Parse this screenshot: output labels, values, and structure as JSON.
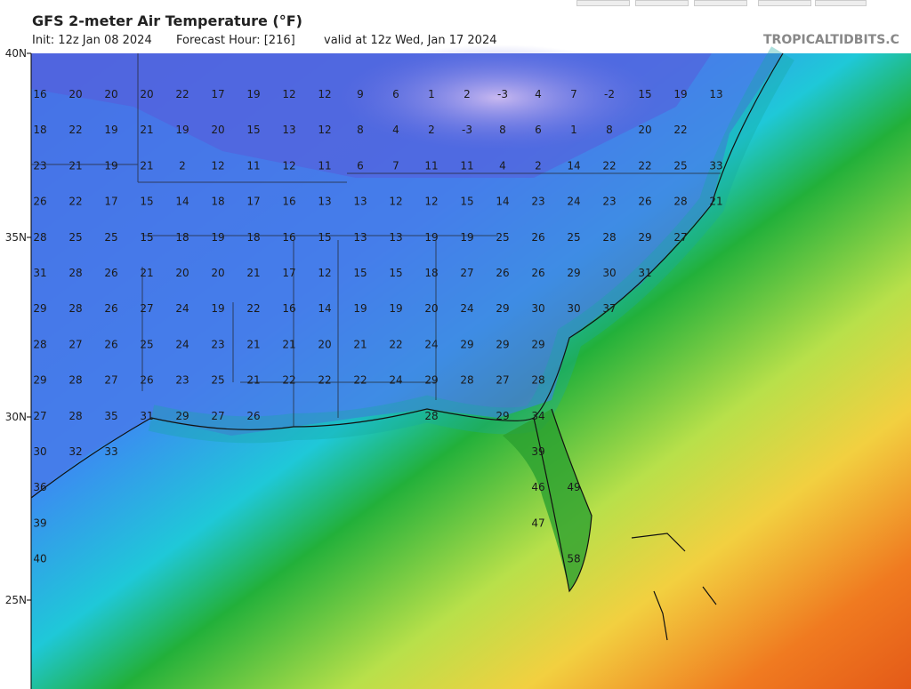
{
  "header": {
    "title": "GFS 2-meter Air Temperature (°F)",
    "init": "Init: 12z Jan 08 2024",
    "forecast": "Forecast Hour: [216]",
    "valid": "valid at 12z Wed, Jan 17 2024"
  },
  "watermark": "TROPICALTIDBITS.C",
  "lat_labels": [
    "40N",
    "35N",
    "30N",
    "25N"
  ],
  "grid": {
    "rows": [
      [
        "16",
        "20",
        "20",
        "20",
        "22",
        "17",
        "19",
        "12",
        "12",
        "9",
        "6",
        "1",
        "2",
        "-3",
        "4",
        "7",
        "-2",
        "15",
        "19",
        "13"
      ],
      [
        "18",
        "22",
        "19",
        "21",
        "19",
        "20",
        "15",
        "13",
        "12",
        "8",
        "4",
        "2",
        "-3",
        "8",
        "6",
        "1",
        "8",
        "20",
        "22",
        null
      ],
      [
        "23",
        "21",
        "19",
        "21",
        "2",
        "12",
        "11",
        "12",
        "11",
        "6",
        "7",
        "11",
        "11",
        "4",
        "2",
        "14",
        "22",
        "22",
        "25",
        "33"
      ],
      [
        "26",
        "22",
        "17",
        "15",
        "14",
        "18",
        "17",
        "16",
        "13",
        "13",
        "12",
        "12",
        "15",
        "14",
        "23",
        "24",
        "23",
        "26",
        "28",
        "21"
      ],
      [
        "28",
        "25",
        "25",
        "15",
        "18",
        "19",
        "18",
        "16",
        "15",
        "13",
        "13",
        "19",
        "19",
        "25",
        "26",
        "25",
        "28",
        "29",
        "27",
        null
      ],
      [
        "31",
        "28",
        "26",
        "21",
        "20",
        "20",
        "21",
        "17",
        "12",
        "15",
        "15",
        "18",
        "27",
        "26",
        "26",
        "29",
        "30",
        "31",
        null,
        null
      ],
      [
        "29",
        "28",
        "26",
        "27",
        "24",
        "19",
        "22",
        "16",
        "14",
        "19",
        "19",
        "20",
        "24",
        "29",
        "30",
        "30",
        "37",
        null,
        null,
        null
      ],
      [
        "28",
        "27",
        "26",
        "25",
        "24",
        "23",
        "21",
        "21",
        "20",
        "21",
        "22",
        "24",
        "29",
        "29",
        "29",
        null,
        null,
        null,
        null,
        null
      ],
      [
        "29",
        "28",
        "27",
        "26",
        "23",
        "25",
        "21",
        "22",
        "22",
        "22",
        "24",
        "29",
        "28",
        "27",
        "28",
        null,
        null,
        null,
        null,
        null
      ],
      [
        "27",
        "28",
        "35",
        "31",
        "29",
        "27",
        "26",
        null,
        null,
        null,
        null,
        "28",
        null,
        "29",
        "34",
        null,
        null,
        null,
        null,
        null
      ],
      [
        "30",
        "32",
        "33",
        null,
        null,
        null,
        null,
        null,
        null,
        null,
        null,
        null,
        null,
        null,
        "39",
        null,
        null,
        null,
        null,
        null
      ],
      [
        "36",
        null,
        null,
        null,
        null,
        null,
        null,
        null,
        null,
        null,
        null,
        null,
        null,
        null,
        "46",
        "49",
        null,
        null,
        null,
        null
      ],
      [
        "39",
        null,
        null,
        null,
        null,
        null,
        null,
        null,
        null,
        null,
        null,
        null,
        null,
        null,
        "47",
        null,
        null,
        null,
        null,
        null
      ],
      [
        "40",
        null,
        null,
        null,
        null,
        null,
        null,
        null,
        null,
        null,
        null,
        null,
        null,
        null,
        null,
        "58",
        null,
        null,
        null,
        null
      ]
    ]
  }
}
